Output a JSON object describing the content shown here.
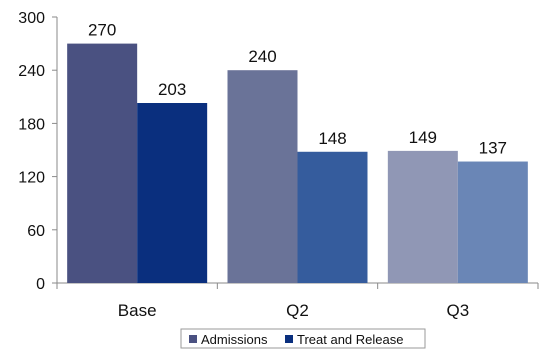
{
  "chart_data": {
    "type": "bar",
    "title": "",
    "xlabel": "",
    "ylabel": "",
    "categories": [
      "Base",
      "Q2",
      "Q3"
    ],
    "ylim": [
      0,
      300
    ],
    "yticks": [
      0,
      60,
      120,
      180,
      240,
      300
    ],
    "grid": false,
    "legend_position": "bottom",
    "series": [
      {
        "name": "Admissions",
        "values": [
          270,
          240,
          149
        ],
        "colors": [
          "#4A5181",
          "#6A7398",
          "#9097B5"
        ]
      },
      {
        "name": "Treat and Release",
        "values": [
          203,
          148,
          137
        ],
        "colors": [
          "#0A2F7E",
          "#355C9D",
          "#6A86B6"
        ]
      }
    ],
    "legend": [
      {
        "label": "Admissions",
        "color": "#4A5181"
      },
      {
        "label": "Treat and Release",
        "color": "#0A2F7E"
      }
    ]
  }
}
